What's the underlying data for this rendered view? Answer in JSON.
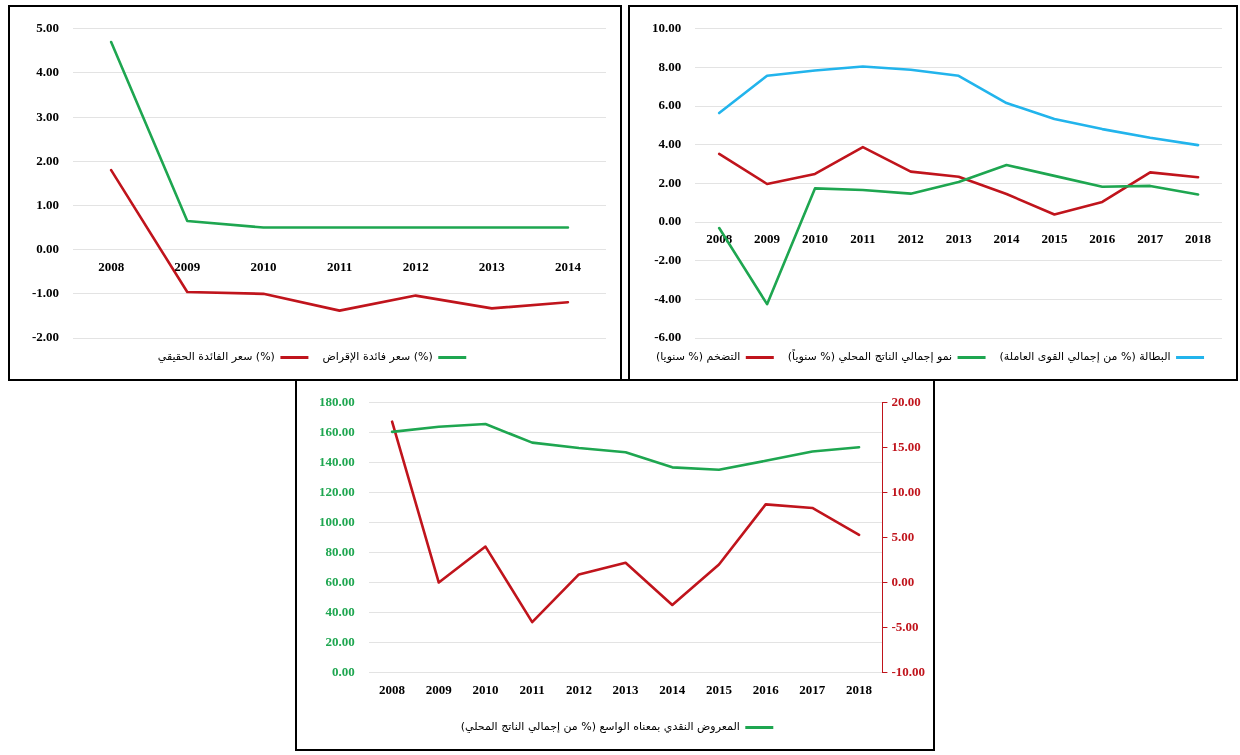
{
  "chart_data": [
    {
      "type": "line",
      "categories": [
        "2008",
        "2009",
        "2010",
        "2011",
        "2012",
        "2013",
        "2014"
      ],
      "series": [
        {
          "name": "سعر فائدة الإقراض (%)",
          "color": "#1ea650",
          "values": [
            4.7,
            0.65,
            0.5,
            0.5,
            0.5,
            0.5,
            0.5
          ]
        },
        {
          "name": "سعر الفائدة الحقيقي (%)",
          "color": "#c0141c",
          "values": [
            1.8,
            -0.96,
            -1.0,
            -1.38,
            -1.04,
            -1.33,
            -1.19
          ]
        }
      ],
      "ylim": [
        -2,
        5
      ],
      "yticks": [
        {
          "value": -2,
          "label": "-2.00"
        },
        {
          "value": -1,
          "label": "-1.00"
        },
        {
          "value": 0,
          "label": "0.00"
        },
        {
          "value": 1,
          "label": "1.00"
        },
        {
          "value": 2,
          "label": "2.00"
        },
        {
          "value": 3,
          "label": "3.00"
        },
        {
          "value": 4,
          "label": "4.00"
        },
        {
          "value": 5,
          "label": "5.00"
        }
      ],
      "grid": "y",
      "legend": "bottom"
    },
    {
      "type": "line",
      "categories": [
        "2008",
        "2009",
        "2010",
        "2011",
        "2012",
        "2013",
        "2014",
        "2015",
        "2016",
        "2017",
        "2018"
      ],
      "series": [
        {
          "name": "البطالة (% من إجمالي القوى العاملة)",
          "color": "#22b4ec",
          "values": [
            5.64,
            7.57,
            7.84,
            8.05,
            7.88,
            7.57,
            6.16,
            5.33,
            4.81,
            4.36,
            3.98
          ]
        },
        {
          "name": "نمو إجمالي الناتج المحلي (% سنوياً)",
          "color": "#1ea650",
          "values": [
            -0.31,
            -4.25,
            1.74,
            1.66,
            1.47,
            2.07,
            2.95,
            2.39,
            1.83,
            1.87,
            1.43
          ]
        },
        {
          "name": "التضخم (% سنويا)",
          "color": "#c0141c",
          "values": [
            3.53,
            1.97,
            2.49,
            3.88,
            2.61,
            2.34,
            1.45,
            0.39,
            1.04,
            2.57,
            2.32
          ]
        }
      ],
      "ylim": [
        -6,
        10
      ],
      "yticks": [
        {
          "value": -6,
          "label": "-6.00"
        },
        {
          "value": -4,
          "label": "-4.00"
        },
        {
          "value": -2,
          "label": "-2.00"
        },
        {
          "value": 0,
          "label": "0.00"
        },
        {
          "value": 2,
          "label": "2.00"
        },
        {
          "value": 4,
          "label": "4.00"
        },
        {
          "value": 6,
          "label": "6.00"
        },
        {
          "value": 8,
          "label": "8.00"
        },
        {
          "value": 10,
          "label": "10.00"
        }
      ],
      "grid": "y",
      "legend": "bottom"
    },
    {
      "type": "line",
      "categories": [
        "2008",
        "2009",
        "2010",
        "2011",
        "2012",
        "2013",
        "2014",
        "2015",
        "2016",
        "2017",
        "2018"
      ],
      "series": [
        {
          "name": "المعروض النقدي بمعناه الواسع (% من إجمالي الناتج المحلي)",
          "color": "#1ea650",
          "values": [
            160.6,
            164,
            165.8,
            153.4,
            149.8,
            147,
            136.9,
            135.3,
            141.3,
            147.5,
            150.3
          ]
        },
        {
          "color": "#c0141c",
          "axis": "y2",
          "values": [
            17.9,
            0.0,
            4.0,
            -4.4,
            0.9,
            2.2,
            -2.5,
            2.0,
            8.7,
            8.3,
            5.3
          ]
        }
      ],
      "ylim": [
        0,
        180
      ],
      "yticks": [
        {
          "value": 0,
          "label": "0.00"
        },
        {
          "value": 20,
          "label": "20.00"
        },
        {
          "value": 40,
          "label": "40.00"
        },
        {
          "value": 60,
          "label": "60.00"
        },
        {
          "value": 80,
          "label": "80.00"
        },
        {
          "value": 100,
          "label": "100.00"
        },
        {
          "value": 120,
          "label": "120.00"
        },
        {
          "value": 140,
          "label": "140.00"
        },
        {
          "value": 160,
          "label": "160.00"
        },
        {
          "value": 180,
          "label": "180.00"
        }
      ],
      "y2lim": [
        -10,
        20
      ],
      "y2ticks": [
        {
          "value": -10,
          "label": "-10.00"
        },
        {
          "value": -5,
          "label": "-5.00"
        },
        {
          "value": 0,
          "label": "0.00"
        },
        {
          "value": 5,
          "label": "5.00"
        },
        {
          "value": 10,
          "label": "10.00"
        },
        {
          "value": 15,
          "label": "15.00"
        },
        {
          "value": 20,
          "label": "20.00"
        }
      ],
      "grid": "y",
      "legend": "bottom"
    }
  ]
}
